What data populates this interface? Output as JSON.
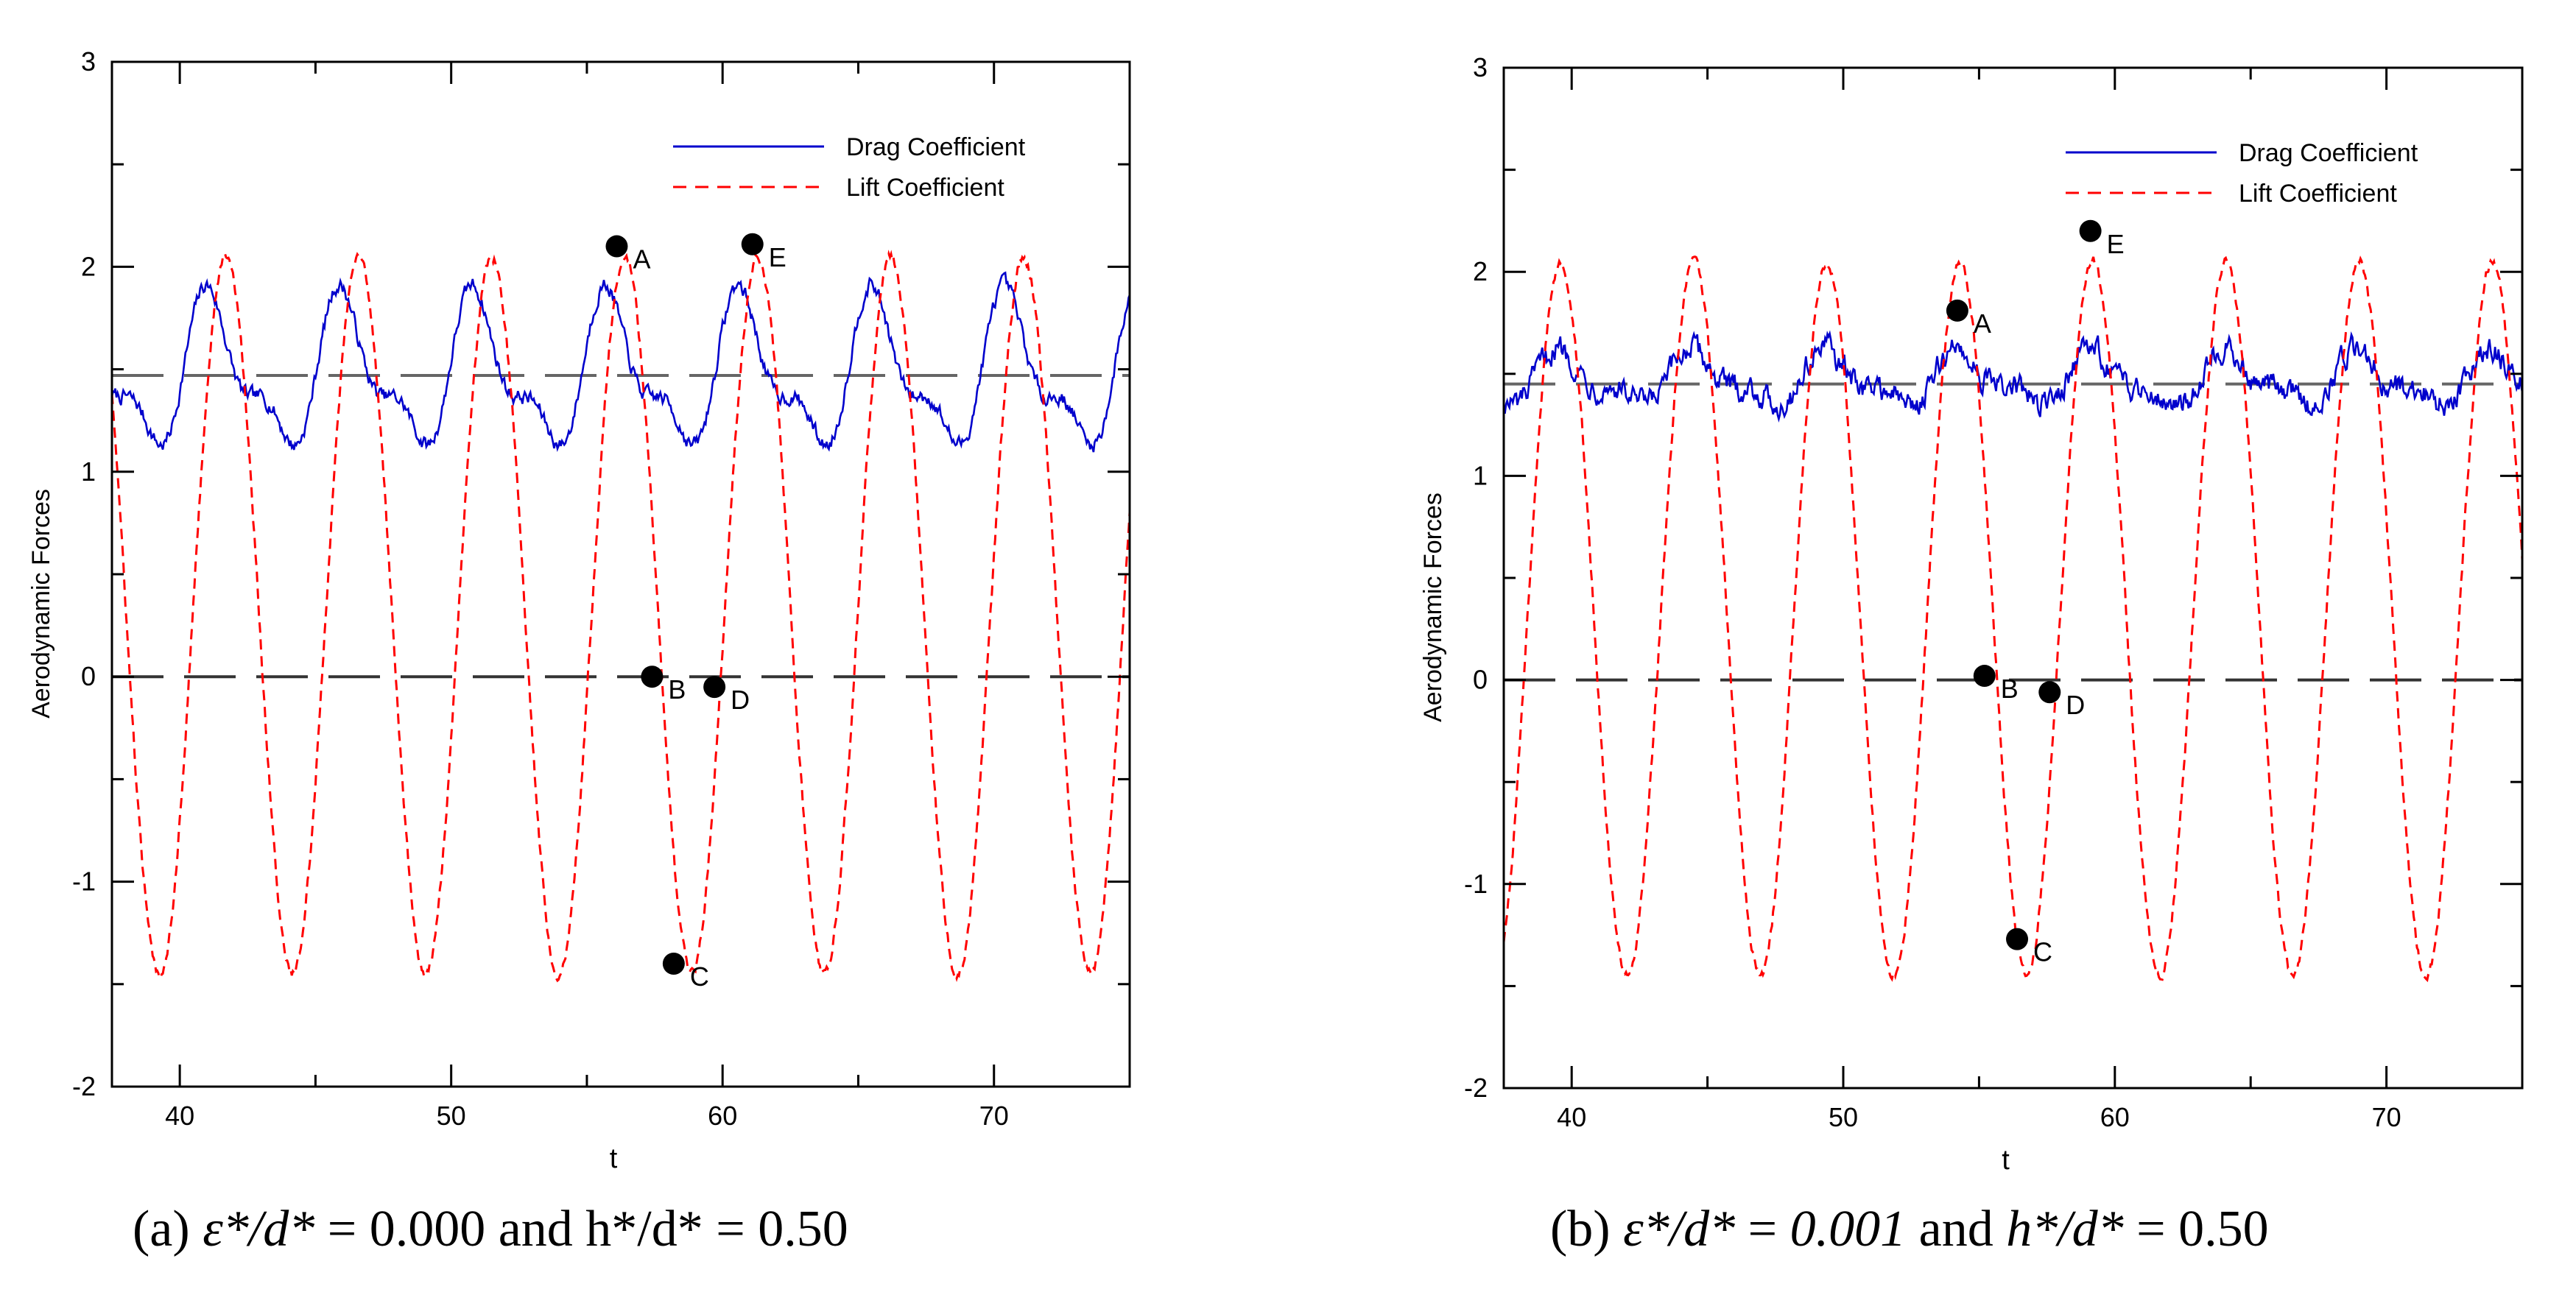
{
  "chart_data": [
    {
      "type": "line",
      "panel": "a",
      "xlabel": "t",
      "ylabel": "Aerodynamic Forces",
      "xlim": [
        37.5,
        75
      ],
      "ylim": [
        -2,
        3
      ],
      "xticks": [
        40,
        50,
        60,
        70
      ],
      "yticks": [
        -2,
        -1,
        0,
        1,
        2,
        3
      ],
      "legend_position": "top-right",
      "reference_lines": [
        1.47,
        0
      ],
      "series": [
        {
          "name": "Drag Coefficient",
          "color": "#0000cc",
          "style": "solid",
          "mean": 1.47,
          "amplitude": 0.42,
          "period": 4.9,
          "phase": 2.0,
          "noise": 0.03
        },
        {
          "name": "Lift Coefficient",
          "color": "#ff0000",
          "style": "dashed",
          "mean": 0.3,
          "amplitude": 1.75,
          "period": 4.9,
          "phase": 56.4,
          "noise": 0.02
        }
      ],
      "points": [
        {
          "label": "A",
          "x": 56.1,
          "y": 2.1
        },
        {
          "label": "B",
          "x": 57.4,
          "y": 0.0
        },
        {
          "label": "C",
          "x": 58.2,
          "y": -1.4
        },
        {
          "label": "D",
          "x": 59.7,
          "y": -0.05
        },
        {
          "label": "E",
          "x": 61.1,
          "y": 2.11
        }
      ],
      "caption": {
        "prefix": "(a) ",
        "var1": "ε*/d*",
        "mid1": " = 0.000 and h",
        "mid2": "*/d* = 0.50"
      }
    },
    {
      "type": "line",
      "panel": "b",
      "xlabel": "t",
      "ylabel": "Aerodynamic Forces",
      "xlim": [
        37.5,
        75
      ],
      "ylim": [
        -2,
        3
      ],
      "xticks": [
        40,
        50,
        60,
        70
      ],
      "yticks": [
        -2,
        -1,
        0,
        1,
        2,
        3
      ],
      "legend_position": "top-right",
      "reference_lines": [
        1.45,
        0
      ],
      "series": [
        {
          "name": "Drag Coefficient",
          "color": "#0000cc",
          "style": "solid",
          "mean": 1.47,
          "amplitude": 0.15,
          "period": 4.9,
          "phase": 0.5,
          "noise": 0.05
        },
        {
          "name": "Lift Coefficient",
          "color": "#ff0000",
          "style": "dashed",
          "mean": 0.3,
          "amplitude": 1.75,
          "period": 4.9,
          "phase": 59.2,
          "noise": 0.02
        }
      ],
      "points": [
        {
          "label": "A",
          "x": 54.2,
          "y": 1.81
        },
        {
          "label": "B",
          "x": 55.2,
          "y": 0.02
        },
        {
          "label": "C",
          "x": 56.4,
          "y": -1.27
        },
        {
          "label": "D",
          "x": 57.6,
          "y": -0.06
        },
        {
          "label": "E",
          "x": 59.1,
          "y": 2.2
        }
      ],
      "caption": {
        "prefix": "(b) ",
        "var1": "ε*/d*",
        "mid1": " = ",
        "var2": "0.001",
        "mid2": " and ",
        "var3": "h*/d*",
        "mid3": " = 0.50"
      }
    }
  ]
}
